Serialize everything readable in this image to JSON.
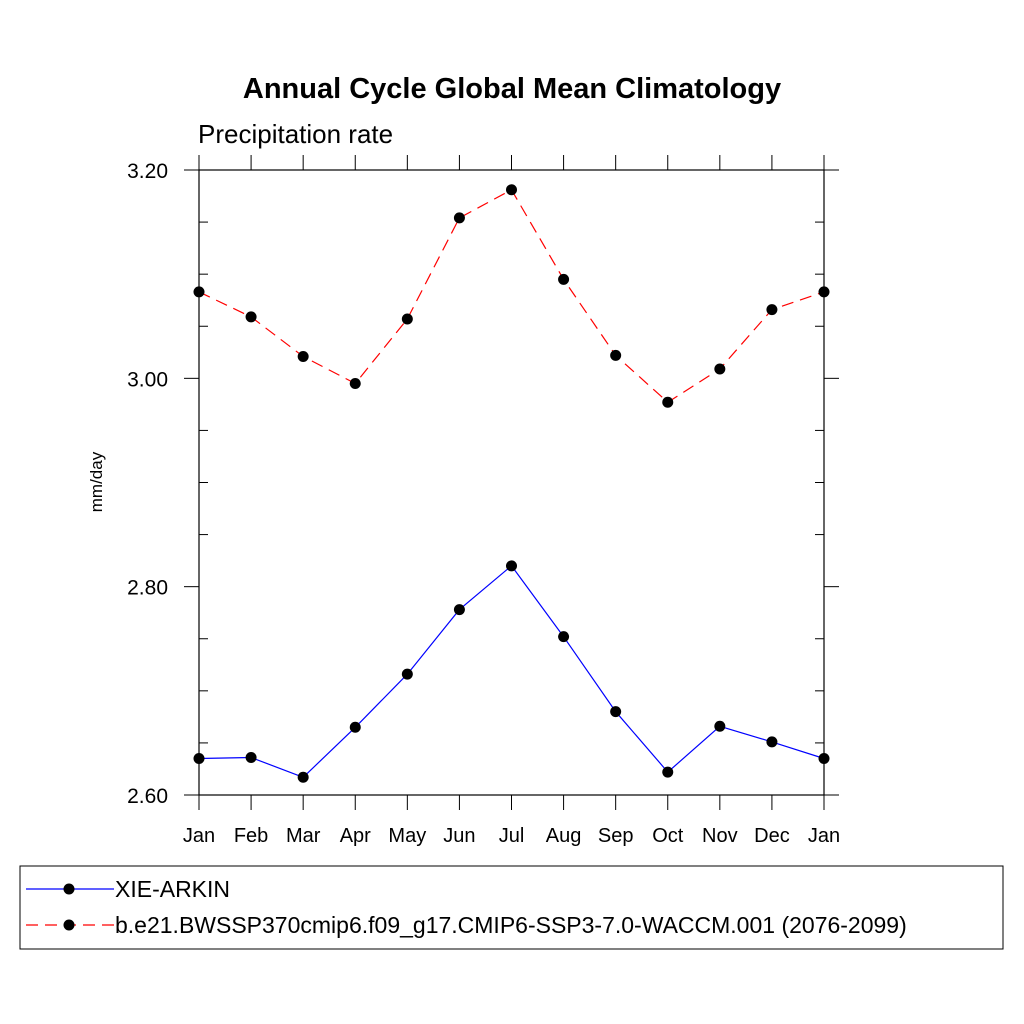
{
  "chart_data": {
    "type": "line",
    "title": "Annual Cycle Global Mean Climatology",
    "subtitle": "Precipitation rate",
    "xlabel": "",
    "ylabel": "mm/day",
    "categories": [
      "Jan",
      "Feb",
      "Mar",
      "Apr",
      "May",
      "Jun",
      "Jul",
      "Aug",
      "Sep",
      "Oct",
      "Nov",
      "Dec",
      "Jan"
    ],
    "ylim": [
      2.6,
      3.2
    ],
    "yticks": [
      "2.60",
      "2.80",
      "3.00",
      "3.20"
    ],
    "grid": false,
    "legend_position": "bottom",
    "series": [
      {
        "name": "XIE-ARKIN",
        "color": "#0000ff",
        "dash": "solid",
        "values": [
          2.635,
          2.636,
          2.617,
          2.665,
          2.716,
          2.778,
          2.82,
          2.752,
          2.68,
          2.622,
          2.666,
          2.651,
          2.635
        ]
      },
      {
        "name": "b.e21.BWSSP370cmip6.f09_g17.CMIP6-SSP3-7.0-WACCM.001 (2076-2099)",
        "color": "#ff0000",
        "dash": "dashed",
        "values": [
          3.083,
          3.059,
          3.021,
          2.995,
          3.057,
          3.154,
          3.181,
          3.095,
          3.022,
          2.977,
          3.009,
          3.066,
          3.083
        ]
      }
    ]
  }
}
